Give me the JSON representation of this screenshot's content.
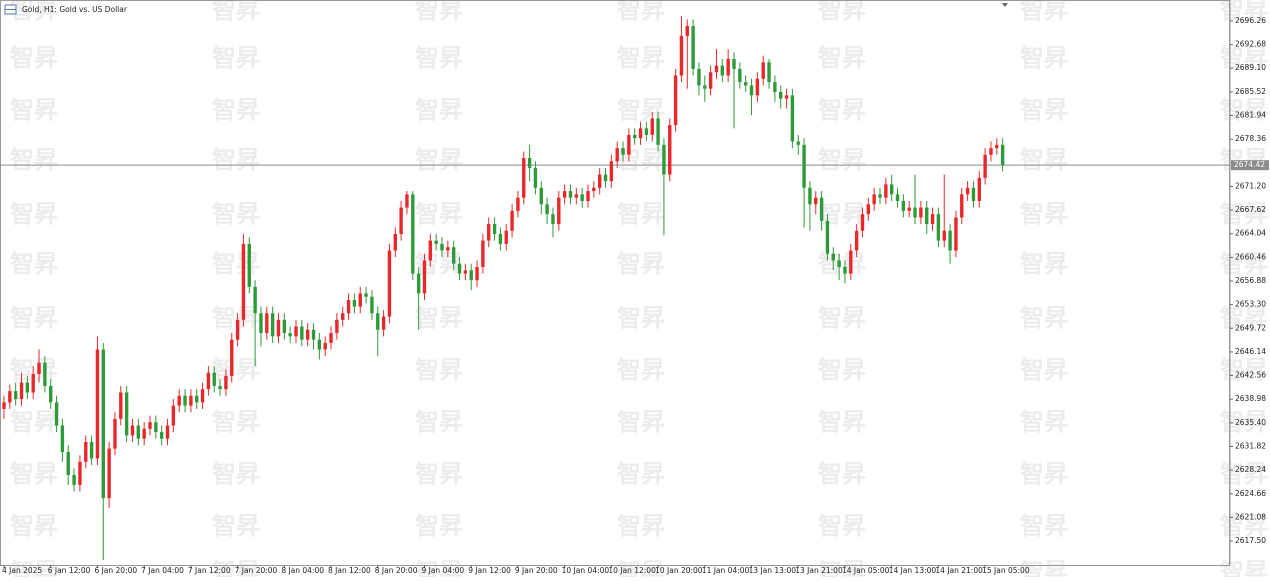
{
  "chart_data": {
    "type": "candlestick",
    "title": "Gold, H1:  Gold vs. US Dollar",
    "watermark": "智昇",
    "up_color": "#e8282b",
    "down_color": "#2e9a3a",
    "current_price": 2674.42,
    "grid": false,
    "ylim": [
      2613.87,
      2698.83
    ],
    "yticks": [
      2696.26,
      2692.68,
      {
        "value": 2689.1,
        "label": "2689.10"
      },
      2685.52,
      2681.94,
      2678.36,
      {
        "value": 2671.2,
        "label": "2671.20"
      },
      2667.62,
      2664.04,
      2660.46,
      2656.88,
      {
        "value": 2653.3,
        "label": "2653.30"
      },
      2649.72,
      2646.14,
      2642.56,
      2638.98,
      {
        "value": 2635.4,
        "label": "2635.40"
      },
      2631.82,
      2628.24,
      2624.66,
      2621.08,
      {
        "value": 2617.5,
        "label": "2617.50"
      }
    ],
    "categories": [
      "4 Jan 2025",
      null,
      null,
      null,
      null,
      null,
      null,
      null,
      "6 Jan 12:00",
      null,
      null,
      null,
      null,
      null,
      null,
      null,
      "6 Jan 20:00",
      null,
      null,
      null,
      null,
      null,
      null,
      null,
      "7 Jan 04:00",
      null,
      null,
      null,
      null,
      null,
      null,
      null,
      "7 Jan 12:00",
      null,
      null,
      null,
      null,
      null,
      null,
      null,
      "7 Jan 20:00",
      null,
      null,
      null,
      null,
      null,
      null,
      null,
      "8 Jan 04:00",
      null,
      null,
      null,
      null,
      null,
      null,
      null,
      "8 Jan 12:00",
      null,
      null,
      null,
      null,
      null,
      null,
      null,
      "8 Jan 20:00",
      null,
      null,
      null,
      null,
      null,
      null,
      null,
      "9 Jan 04:00",
      null,
      null,
      null,
      null,
      null,
      null,
      null,
      "9 Jan 12:00",
      null,
      null,
      null,
      null,
      null,
      null,
      null,
      "9 Jan 20:00",
      null,
      null,
      null,
      null,
      null,
      null,
      null,
      "10 Jan 04:00",
      null,
      null,
      null,
      null,
      null,
      null,
      null,
      "10 Jan 12:00",
      null,
      null,
      null,
      null,
      null,
      null,
      null,
      "10 Jan 20:00",
      null,
      null,
      null,
      null,
      null,
      null,
      null,
      "11 Jan 04:00",
      null,
      null,
      null,
      null,
      null,
      null,
      null,
      "13 Jan 13:00",
      null,
      null,
      null,
      null,
      null,
      null,
      null,
      "13 Jan 21:00",
      null,
      null,
      null,
      null,
      null,
      null,
      null,
      "14 Jan 05:00",
      null,
      null,
      null,
      null,
      null,
      null,
      null,
      "14 Jan 13:00",
      null,
      null,
      null,
      null,
      null,
      null,
      null,
      "14 Jan 21:00",
      null,
      null,
      null,
      null,
      null,
      null,
      null,
      "15 Jan 05:00",
      null,
      null,
      null
    ],
    "open": [
      2637.5,
      2638.5,
      2640.2,
      2639.0,
      2641.5,
      2640.0,
      2642.8,
      2644.5,
      2641.0,
      2638.5,
      2635.0,
      2631.0,
      2627.5,
      2626.0,
      2629.5,
      2632.5,
      2630.0,
      2646.5,
      2624.0,
      2631.5,
      2636.0,
      2640.0,
      2633.5,
      2635.0,
      2633.0,
      2634.5,
      2635.5,
      2634.0,
      2633.0,
      2635.0,
      2638.0,
      2639.5,
      2638.0,
      2639.5,
      2638.5,
      2640.5,
      2643.0,
      2641.0,
      2640.5,
      2642.5,
      2648.0,
      2651.0,
      2662.5,
      2656.0,
      2652.0,
      2649.0,
      2652.0,
      2648.5,
      2651.0,
      2649.0,
      2648.5,
      2650.0,
      2648.0,
      2649.5,
      2648.0,
      2646.5,
      2647.5,
      2649.0,
      2651.0,
      2652.0,
      2654.0,
      2653.0,
      2655.0,
      2654.5,
      2652.0,
      2649.5,
      2651.5,
      2661.5,
      2664.0,
      2668.0,
      2670.0,
      2658.0,
      2655.0,
      2660.0,
      2663.0,
      2662.5,
      2661.5,
      2662.0,
      2659.5,
      2658.0,
      2658.5,
      2657.0,
      2659.0,
      2663.0,
      2665.5,
      2664.0,
      2662.5,
      2664.5,
      2667.5,
      2669.5,
      2675.5,
      2674.0,
      2671.0,
      2668.5,
      2667.0,
      2665.5,
      2669.5,
      2670.5,
      2669.5,
      2670.0,
      2669.0,
      2670.5,
      2671.0,
      2673.0,
      2672.0,
      2675.0,
      2677.0,
      2676.0,
      2679.0,
      2678.5,
      2680.0,
      2679.0,
      2681.5,
      2677.5,
      2673.0,
      2680.5,
      2688.0,
      2694.0,
      2695.5,
      2689.0,
      2686.5,
      2686.0,
      2688.5,
      2689.5,
      2688.0,
      2690.5,
      2689.0,
      2687.0,
      2686.5,
      2685.0,
      2687.5,
      2690.0,
      2687.0,
      2685.5,
      2684.5,
      2685.0,
      2678.0,
      2677.5,
      2671.0,
      2668.5,
      2669.5,
      2666.0,
      2661.0,
      2660.0,
      2659.0,
      2658.0,
      2661.5,
      2664.5,
      2667.0,
      2668.5,
      2670.0,
      2669.5,
      2671.5,
      2670.0,
      2669.0,
      2667.5,
      2668.0,
      2666.5,
      2668.0,
      2665.5,
      2667.0,
      2663.0,
      2664.5,
      2661.5,
      2666.5,
      2670.0,
      2671.0,
      2669.0,
      2672.5,
      2676.0,
      2677.0,
      2677.5
    ],
    "high": [
      2639.5,
      2641.2,
      2641.5,
      2643.0,
      2642.5,
      2644.0,
      2646.5,
      2645.5,
      2642.0,
      2639.5,
      2636.0,
      2632.0,
      2628.5,
      2630.5,
      2633.5,
      2633.5,
      2648.5,
      2647.5,
      2632.5,
      2637.0,
      2641.0,
      2641.0,
      2636.0,
      2636.0,
      2635.5,
      2636.5,
      2636.5,
      2635.0,
      2636.0,
      2639.0,
      2640.5,
      2640.5,
      2640.5,
      2640.5,
      2641.5,
      2644.0,
      2644.0,
      2642.0,
      2643.5,
      2649.0,
      2652.0,
      2664.0,
      2663.5,
      2657.0,
      2653.0,
      2653.0,
      2653.0,
      2652.0,
      2652.0,
      2650.0,
      2651.0,
      2651.0,
      2650.5,
      2650.5,
      2649.0,
      2648.5,
      2650.0,
      2652.0,
      2653.0,
      2655.0,
      2655.0,
      2656.0,
      2656.0,
      2655.5,
      2653.0,
      2652.5,
      2662.5,
      2665.0,
      2669.0,
      2670.5,
      2670.5,
      2659.0,
      2661.0,
      2664.0,
      2664.0,
      2663.5,
      2663.0,
      2663.0,
      2660.5,
      2659.5,
      2659.5,
      2660.0,
      2664.0,
      2666.5,
      2666.5,
      2665.0,
      2665.5,
      2668.5,
      2670.5,
      2676.5,
      2677.5,
      2675.0,
      2672.0,
      2669.5,
      2668.0,
      2670.5,
      2671.5,
      2671.5,
      2671.0,
      2671.0,
      2671.5,
      2672.0,
      2674.0,
      2674.0,
      2676.0,
      2678.0,
      2678.0,
      2680.0,
      2680.0,
      2681.0,
      2681.0,
      2682.5,
      2682.5,
      2678.5,
      2681.5,
      2689.0,
      2697.0,
      2696.5,
      2696.5,
      2690.0,
      2688.0,
      2689.5,
      2692.0,
      2690.5,
      2692.0,
      2691.5,
      2690.0,
      2688.0,
      2687.5,
      2688.5,
      2691.0,
      2690.5,
      2688.0,
      2686.5,
      2686.0,
      2686.0,
      2679.0,
      2678.5,
      2672.0,
      2670.5,
      2670.5,
      2667.0,
      2662.0,
      2661.0,
      2660.0,
      2662.5,
      2665.5,
      2668.0,
      2669.5,
      2671.0,
      2671.0,
      2672.5,
      2673.0,
      2671.0,
      2670.0,
      2669.0,
      2673.0,
      2669.0,
      2669.0,
      2668.0,
      2668.0,
      2673.0,
      2665.5,
      2667.5,
      2671.0,
      2672.0,
      2672.0,
      2673.5,
      2677.0,
      2678.0,
      2678.5,
      2678.5
    ],
    "low": [
      2636.0,
      2637.5,
      2638.0,
      2638.0,
      2639.0,
      2639.0,
      2641.5,
      2640.0,
      2637.5,
      2634.0,
      2629.5,
      2626.0,
      2625.0,
      2625.0,
      2628.5,
      2629.0,
      2629.0,
      2614.6,
      2622.5,
      2630.5,
      2635.0,
      2632.5,
      2632.5,
      2632.0,
      2632.0,
      2633.5,
      2633.0,
      2632.0,
      2632.0,
      2634.0,
      2637.0,
      2637.0,
      2637.0,
      2637.5,
      2637.5,
      2639.5,
      2640.0,
      2639.5,
      2639.5,
      2641.5,
      2647.0,
      2650.0,
      2655.0,
      2644.0,
      2647.0,
      2648.0,
      2647.5,
      2647.5,
      2648.0,
      2647.5,
      2647.5,
      2647.0,
      2647.0,
      2646.5,
      2645.0,
      2645.5,
      2646.5,
      2648.0,
      2650.0,
      2651.0,
      2652.0,
      2652.0,
      2653.5,
      2651.0,
      2645.5,
      2648.5,
      2650.5,
      2660.5,
      2663.0,
      2667.0,
      2657.0,
      2649.5,
      2654.0,
      2659.0,
      2661.5,
      2660.5,
      2660.5,
      2658.5,
      2657.0,
      2657.0,
      2655.5,
      2656.0,
      2658.0,
      2662.0,
      2663.0,
      2661.5,
      2661.5,
      2663.5,
      2666.5,
      2668.5,
      2672.0,
      2670.0,
      2667.0,
      2665.5,
      2663.5,
      2664.5,
      2668.5,
      2668.5,
      2668.5,
      2668.0,
      2668.0,
      2669.5,
      2670.0,
      2671.0,
      2671.0,
      2674.0,
      2675.0,
      2675.0,
      2677.5,
      2677.5,
      2678.0,
      2678.0,
      2676.5,
      2663.8,
      2672.0,
      2679.5,
      2687.0,
      2686.0,
      2688.0,
      2685.0,
      2684.0,
      2685.0,
      2687.5,
      2687.0,
      2687.0,
      2680.0,
      2686.0,
      2685.5,
      2682.0,
      2684.0,
      2686.5,
      2686.0,
      2684.0,
      2683.0,
      2683.0,
      2677.0,
      2676.0,
      2665.0,
      2664.5,
      2667.0,
      2664.5,
      2660.0,
      2658.5,
      2657.0,
      2656.5,
      2657.0,
      2660.5,
      2663.5,
      2666.0,
      2667.5,
      2668.5,
      2668.5,
      2669.0,
      2668.0,
      2666.5,
      2666.5,
      2665.5,
      2665.5,
      2664.0,
      2664.5,
      2662.0,
      2662.0,
      2659.5,
      2660.5,
      2665.5,
      2669.0,
      2668.0,
      2668.0,
      2671.5,
      2675.0,
      2676.0,
      2673.5
    ],
    "close": [
      2638.5,
      2640.2,
      2639.0,
      2641.5,
      2640.0,
      2642.8,
      2644.5,
      2641.0,
      2638.5,
      2635.0,
      2631.0,
      2627.5,
      2626.0,
      2629.5,
      2632.5,
      2630.0,
      2646.5,
      2624.0,
      2631.5,
      2636.0,
      2640.0,
      2633.5,
      2635.0,
      2633.0,
      2634.5,
      2635.5,
      2634.0,
      2633.0,
      2635.0,
      2638.0,
      2639.5,
      2638.0,
      2639.5,
      2638.5,
      2640.5,
      2643.0,
      2641.0,
      2640.5,
      2642.5,
      2648.0,
      2651.0,
      2662.5,
      2656.0,
      2652.0,
      2649.0,
      2652.0,
      2648.5,
      2651.0,
      2649.0,
      2648.5,
      2650.0,
      2648.0,
      2649.5,
      2648.0,
      2646.5,
      2647.5,
      2649.0,
      2651.0,
      2652.0,
      2654.0,
      2653.0,
      2655.0,
      2654.5,
      2652.0,
      2649.5,
      2651.5,
      2661.5,
      2664.0,
      2668.0,
      2670.0,
      2658.0,
      2655.0,
      2660.0,
      2663.0,
      2662.5,
      2661.5,
      2662.0,
      2659.5,
      2658.0,
      2658.5,
      2657.0,
      2659.0,
      2663.0,
      2665.5,
      2664.0,
      2662.5,
      2664.5,
      2667.5,
      2669.5,
      2675.5,
      2674.0,
      2671.0,
      2668.5,
      2667.0,
      2665.5,
      2669.5,
      2670.5,
      2669.5,
      2670.0,
      2669.0,
      2670.5,
      2671.0,
      2673.0,
      2672.0,
      2675.0,
      2677.0,
      2676.0,
      2679.0,
      2678.5,
      2680.0,
      2679.0,
      2681.5,
      2677.5,
      2673.0,
      2680.5,
      2688.0,
      2694.0,
      2695.5,
      2689.0,
      2686.5,
      2686.0,
      2688.5,
      2689.5,
      2688.0,
      2690.5,
      2689.0,
      2687.0,
      2686.5,
      2685.0,
      2687.5,
      2690.0,
      2687.0,
      2685.5,
      2684.5,
      2685.0,
      2678.0,
      2677.5,
      2671.0,
      2668.5,
      2669.5,
      2666.0,
      2661.0,
      2660.0,
      2659.0,
      2658.0,
      2661.5,
      2664.5,
      2667.0,
      2668.5,
      2670.0,
      2669.5,
      2671.5,
      2670.0,
      2669.0,
      2667.5,
      2668.0,
      2666.5,
      2668.0,
      2665.5,
      2667.0,
      2663.0,
      2664.5,
      2661.5,
      2666.5,
      2670.0,
      2671.0,
      2669.0,
      2672.5,
      2676.0,
      2677.0,
      2677.5,
      2674.42
    ]
  }
}
